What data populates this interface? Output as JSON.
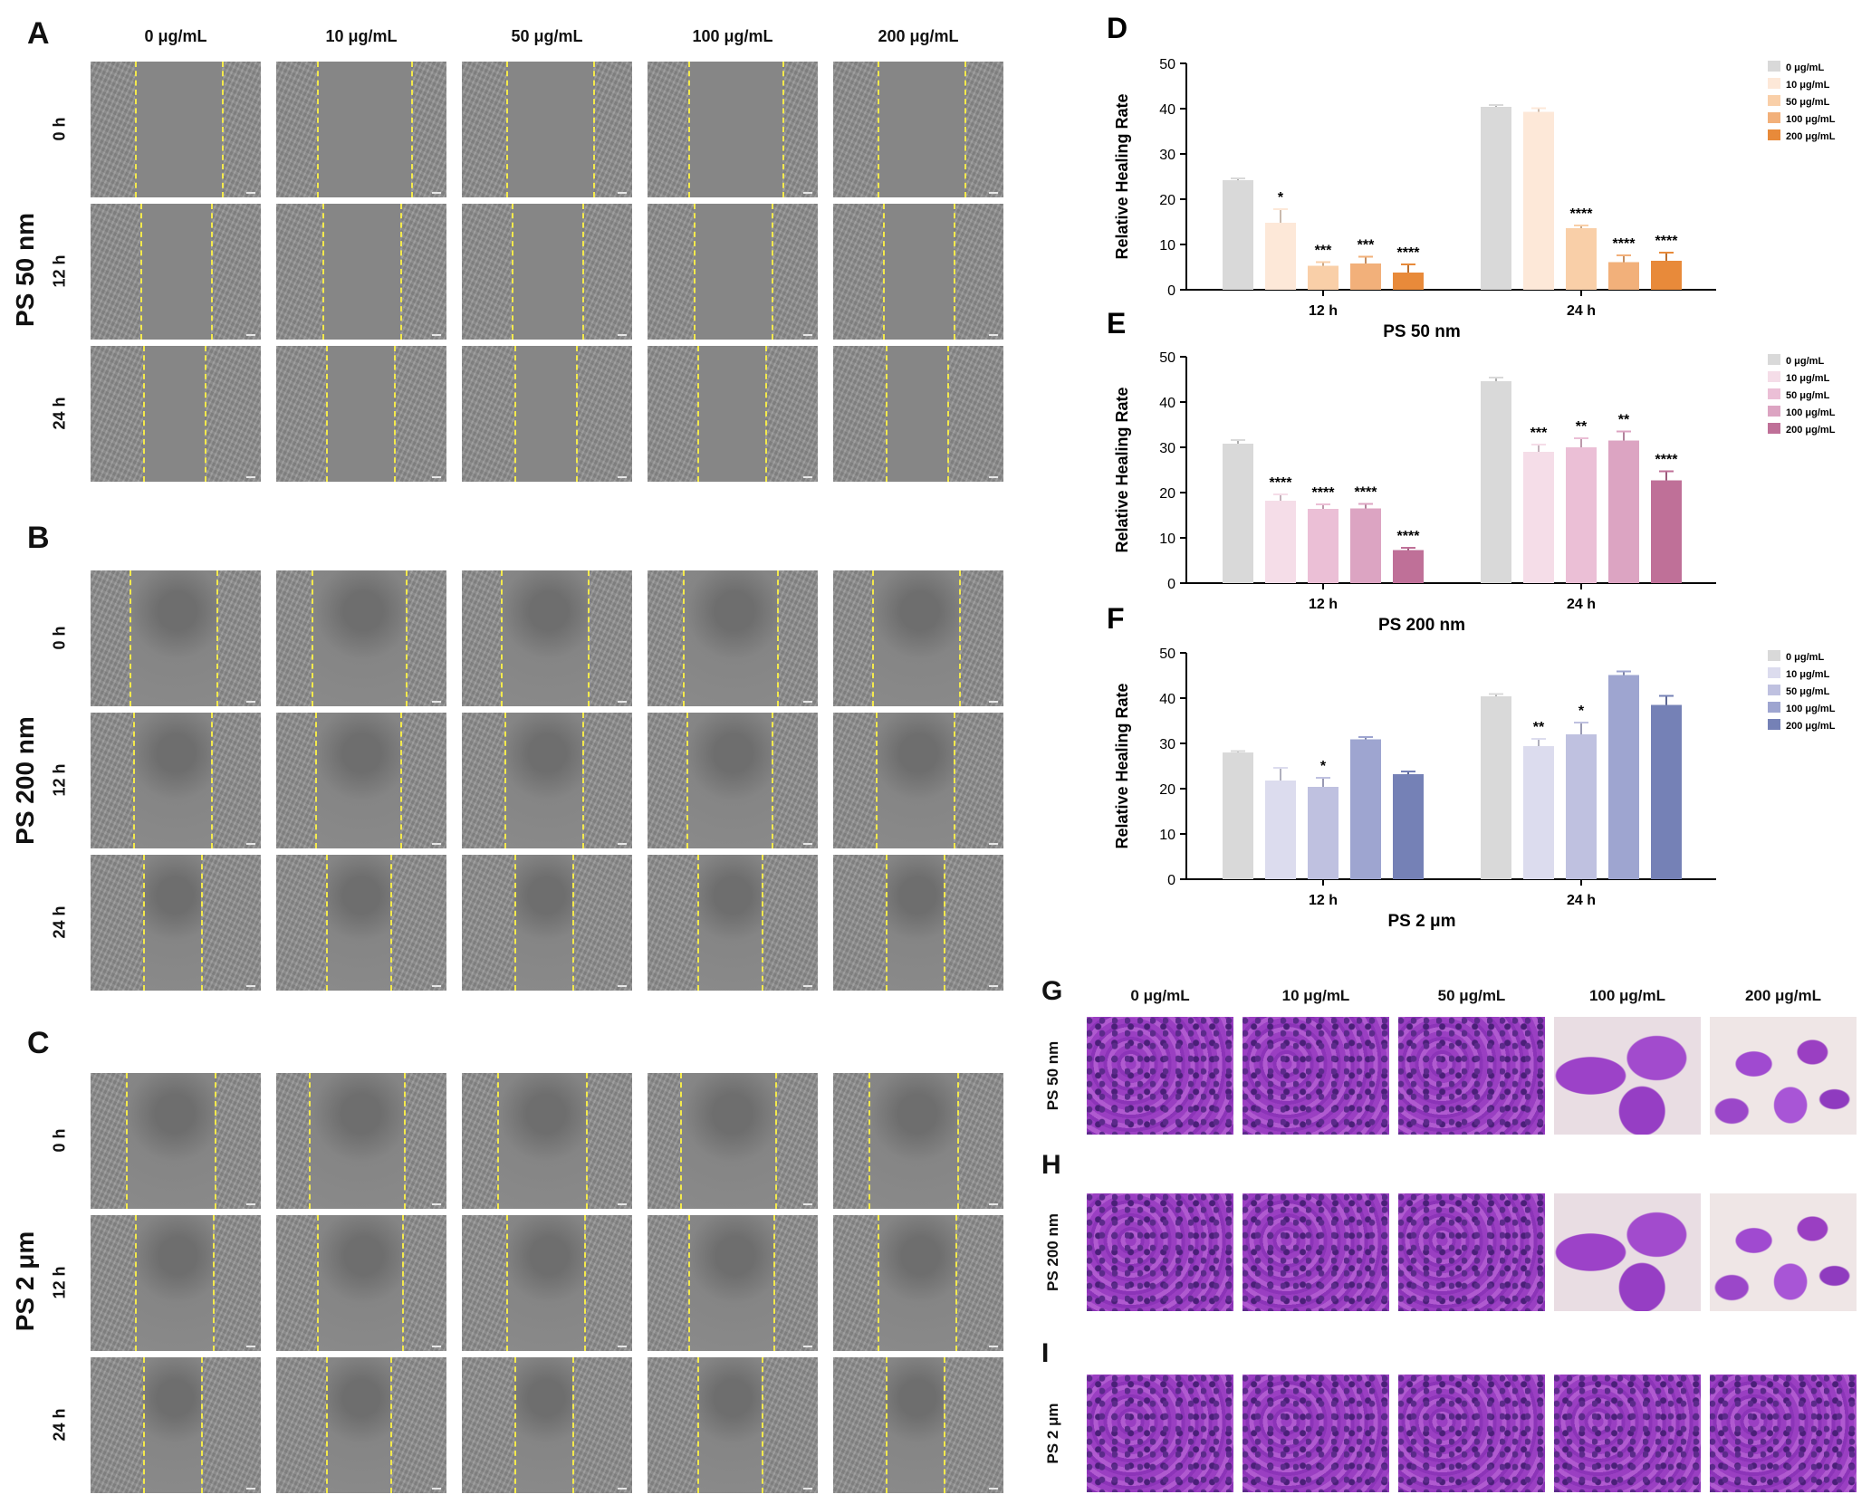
{
  "panels": {
    "A": "A",
    "B": "B",
    "C": "C",
    "D": "D",
    "E": "E",
    "F": "F",
    "G": "G",
    "H": "H",
    "I": "I"
  },
  "concentrations": [
    "0 μg/mL",
    "10 μg/mL",
    "50 μg/mL",
    "100 μg/mL",
    "200 μg/mL"
  ],
  "timepoints": [
    "0 h",
    "12 h",
    "24 h"
  ],
  "groups": [
    "PS 50 nm",
    "PS 200 nm",
    "PS 2 μm"
  ],
  "colors": {
    "ps50": [
      "#d9d9d9",
      "#fde8d8",
      "#f9cfa8",
      "#f2b07a",
      "#e88a3a"
    ],
    "ps200": [
      "#d9d9d9",
      "#f5dde8",
      "#ebbfd6",
      "#dca4c2",
      "#bf7098"
    ],
    "ps2um": [
      "#d9d9d9",
      "#dcdcee",
      "#bfc1e0",
      "#9ea5d0",
      "#7581b6"
    ],
    "scratch_edge": "#f3e94c",
    "crystal_violet": "#9a3fc2"
  },
  "chart_data": [
    {
      "type": "bar",
      "panel": "D",
      "title": "PS 50 nm",
      "ylabel": "Relative Healing Rate",
      "xlabel": "",
      "ylim": [
        0,
        50
      ],
      "yticks": [
        0,
        10,
        20,
        30,
        40,
        50
      ],
      "categories": [
        "12 h",
        "24 h"
      ],
      "series": [
        {
          "name": "0 μg/mL",
          "values": [
            24.2,
            40.4
          ],
          "err": [
            0.4,
            0.4
          ],
          "sig": [
            "",
            ""
          ]
        },
        {
          "name": "10 μg/mL",
          "values": [
            14.8,
            39.3
          ],
          "err": [
            3.0,
            0.8
          ],
          "sig": [
            "*",
            ""
          ]
        },
        {
          "name": "50 μg/mL",
          "values": [
            5.3,
            13.6
          ],
          "err": [
            0.8,
            0.6
          ],
          "sig": [
            "***",
            "****"
          ]
        },
        {
          "name": "100 μg/mL",
          "values": [
            5.8,
            6.1
          ],
          "err": [
            1.5,
            1.5
          ],
          "sig": [
            "***",
            "****"
          ]
        },
        {
          "name": "200 μg/mL",
          "values": [
            3.8,
            6.4
          ],
          "err": [
            1.8,
            1.8
          ],
          "sig": [
            "****",
            "****"
          ]
        }
      ]
    },
    {
      "type": "bar",
      "panel": "E",
      "title": "PS 200 nm",
      "ylabel": "Relative Healing Rate",
      "xlabel": "",
      "ylim": [
        0,
        50
      ],
      "yticks": [
        0,
        10,
        20,
        30,
        40,
        50
      ],
      "categories": [
        "12 h",
        "24 h"
      ],
      "series": [
        {
          "name": "0 μg/mL",
          "values": [
            30.8,
            44.6
          ],
          "err": [
            0.8,
            0.8
          ],
          "sig": [
            "",
            ""
          ]
        },
        {
          "name": "10 μg/mL",
          "values": [
            18.2,
            29.0
          ],
          "err": [
            1.4,
            1.6
          ],
          "sig": [
            "****",
            "***"
          ]
        },
        {
          "name": "50 μg/mL",
          "values": [
            16.4,
            30.0
          ],
          "err": [
            1.0,
            2.0
          ],
          "sig": [
            "****",
            "**"
          ]
        },
        {
          "name": "100 μg/mL",
          "values": [
            16.5,
            31.5
          ],
          "err": [
            1.0,
            2.0
          ],
          "sig": [
            "****",
            "**"
          ]
        },
        {
          "name": "200 μg/mL",
          "values": [
            7.3,
            22.7
          ],
          "err": [
            0.5,
            2.0
          ],
          "sig": [
            "****",
            "****"
          ]
        }
      ]
    },
    {
      "type": "bar",
      "panel": "F",
      "title": "PS 2 μm",
      "ylabel": "Relative Healing Rate",
      "xlabel": "",
      "ylim": [
        0,
        50
      ],
      "yticks": [
        0,
        10,
        20,
        30,
        40,
        50
      ],
      "categories": [
        "12 h",
        "24 h"
      ],
      "series": [
        {
          "name": "0 μg/mL",
          "values": [
            28.0,
            40.4
          ],
          "err": [
            0.3,
            0.5
          ],
          "sig": [
            "",
            ""
          ]
        },
        {
          "name": "10 μg/mL",
          "values": [
            21.8,
            29.4
          ],
          "err": [
            2.8,
            1.6
          ],
          "sig": [
            "",
            "**"
          ]
        },
        {
          "name": "50 μg/mL",
          "values": [
            20.4,
            32.0
          ],
          "err": [
            2.0,
            2.6
          ],
          "sig": [
            "*",
            "*"
          ]
        },
        {
          "name": "100 μg/mL",
          "values": [
            30.9,
            45.1
          ],
          "err": [
            0.5,
            0.8
          ],
          "sig": [
            "",
            ""
          ]
        },
        {
          "name": "200 μg/mL",
          "values": [
            23.2,
            38.5
          ],
          "err": [
            0.6,
            2.0
          ],
          "sig": [
            "",
            ""
          ]
        }
      ]
    }
  ]
}
